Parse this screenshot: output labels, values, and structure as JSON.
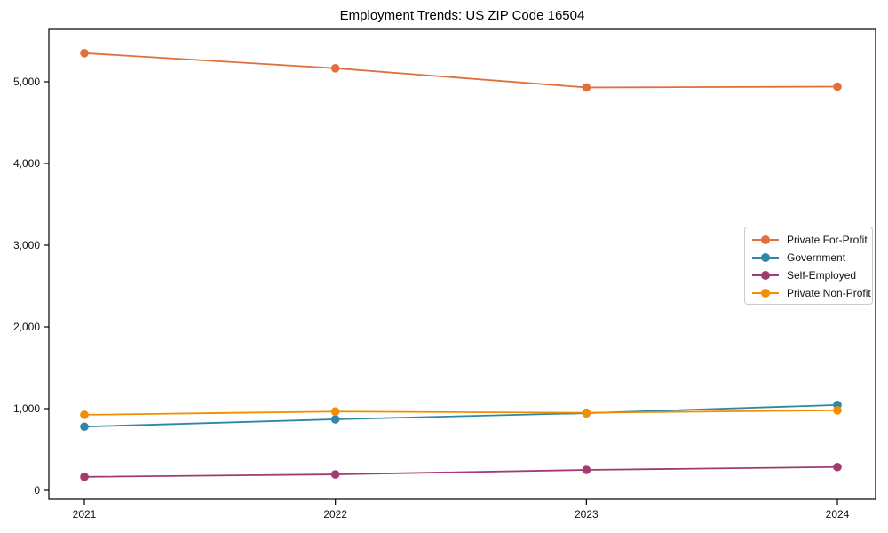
{
  "chart_data": {
    "type": "line",
    "title": "Employment Trends: US ZIP Code 16504",
    "xlabel": "",
    "ylabel": "",
    "grid": false,
    "legend_position": "center-right",
    "categories": [
      "2021",
      "2022",
      "2023",
      "2024"
    ],
    "y_ticks": [
      0,
      1000,
      2000,
      3000,
      4000,
      5000
    ],
    "y_tick_labels": [
      "0",
      "1,000",
      "2,000",
      "3,000",
      "4,000",
      "5,000"
    ],
    "ylim": [
      0,
      5640
    ],
    "series": [
      {
        "name": "Private For-Profit",
        "color": "#E0713C",
        "values": [
          5350,
          5165,
          4930,
          4940
        ]
      },
      {
        "name": "Government",
        "color": "#2E86A8",
        "values": [
          780,
          870,
          945,
          1045
        ]
      },
      {
        "name": "Self-Employed",
        "color": "#A23B72",
        "values": [
          165,
          195,
          250,
          285
        ]
      },
      {
        "name": "Private Non-Profit",
        "color": "#F18F01",
        "values": [
          925,
          965,
          950,
          980
        ]
      }
    ],
    "axis_color": "#000000",
    "tick_label_color": "#111111"
  }
}
